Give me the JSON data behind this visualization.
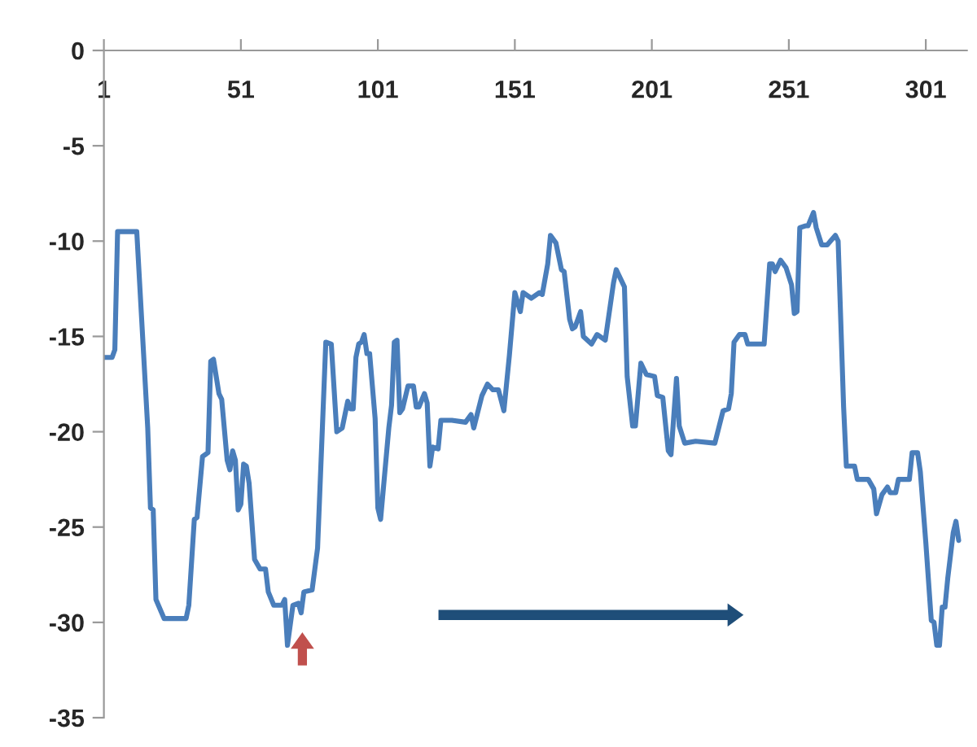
{
  "chart_data": {
    "type": "line",
    "xlim": [
      1,
      316
    ],
    "xticks": [
      1,
      51,
      101,
      151,
      201,
      251,
      301
    ],
    "ylim": [
      -35,
      0
    ],
    "yticks": [
      0,
      -5,
      -10,
      -15,
      -20,
      -25,
      -30,
      -35
    ],
    "grid": false,
    "legend": false,
    "marker": "none",
    "line_style": "solid",
    "series": [
      {
        "color": "#4a7ebb",
        "x": [
          1,
          4,
          5,
          6,
          10,
          13,
          17,
          18,
          19,
          20,
          23,
          27,
          31,
          32,
          34,
          35,
          37,
          39,
          40,
          41,
          43,
          44,
          46,
          47,
          48,
          49,
          50,
          51,
          52,
          53,
          54,
          56,
          58,
          60,
          61,
          63,
          66,
          67,
          68,
          70,
          72,
          73,
          74,
          77,
          79,
          82,
          84,
          86,
          88,
          90,
          91,
          92,
          93,
          94,
          95,
          96,
          97,
          98,
          100,
          101,
          102,
          105,
          106,
          107,
          108,
          109,
          110,
          112,
          114,
          115,
          116,
          118,
          119,
          120,
          121,
          123,
          124,
          128,
          133,
          135,
          136,
          139,
          141,
          143,
          145,
          147,
          149,
          151,
          153,
          154,
          157,
          160,
          161,
          163,
          164,
          166,
          168,
          169,
          171,
          172,
          173,
          175,
          176,
          179,
          181,
          184,
          187,
          188,
          191,
          192,
          194,
          195,
          197,
          199,
          202,
          203,
          205,
          207,
          208,
          210,
          211,
          213,
          217,
          224,
          227,
          229,
          230,
          231,
          233,
          235,
          236,
          242,
          244,
          245,
          246,
          248,
          250,
          252,
          253,
          254,
          255,
          257,
          258,
          260,
          261,
          263,
          265,
          268,
          269,
          271,
          272,
          275,
          276,
          280,
          282,
          283,
          285,
          287,
          288,
          290,
          291,
          295,
          296,
          298,
          299,
          301,
          303,
          304,
          305,
          306,
          307,
          308,
          309,
          310,
          311,
          312,
          313
        ],
        "values": [
          -16.1,
          -16.1,
          -15.7,
          -9.5,
          -9.5,
          -9.5,
          -19.8,
          -24,
          -24.1,
          -28.8,
          -29.8,
          -29.8,
          -29.8,
          -29.1,
          -24.6,
          -24.5,
          -21.3,
          -21.1,
          -16.3,
          -16.2,
          -18,
          -18.3,
          -21.5,
          -22,
          -21,
          -21.5,
          -24.1,
          -23.8,
          -21.7,
          -21.8,
          -22.7,
          -26.7,
          -27.2,
          -27.2,
          -28.4,
          -29.1,
          -29.1,
          -28.8,
          -31.2,
          -29.1,
          -29,
          -29.5,
          -28.4,
          -28.3,
          -26.1,
          -15.3,
          -15.4,
          -20,
          -19.8,
          -18.4,
          -18.8,
          -18.8,
          -16.1,
          -15.4,
          -15.3,
          -14.9,
          -15.9,
          -15.9,
          -19.3,
          -24,
          -24.6,
          -19.8,
          -18.6,
          -15.3,
          -15.2,
          -19,
          -18.8,
          -17.6,
          -17.6,
          -18.7,
          -18.7,
          -18,
          -18.5,
          -21.8,
          -20.8,
          -20.9,
          -19.4,
          -19.4,
          -19.5,
          -19.1,
          -19.8,
          -18.1,
          -17.5,
          -17.8,
          -17.8,
          -18.9,
          -16,
          -12.7,
          -13.7,
          -12.7,
          -13,
          -12.7,
          -12.8,
          -11.2,
          -9.7,
          -10.1,
          -11.5,
          -11.6,
          -14.1,
          -14.6,
          -14.5,
          -13.7,
          -15,
          -15.4,
          -14.9,
          -15.2,
          -12.2,
          -11.5,
          -12.4,
          -17.1,
          -19.7,
          -19.7,
          -16.4,
          -17,
          -17.1,
          -18.1,
          -18.2,
          -21,
          -21.2,
          -17.2,
          -19.7,
          -20.6,
          -20.5,
          -20.6,
          -18.9,
          -18.8,
          -18,
          -15.3,
          -14.9,
          -14.9,
          -15.4,
          -15.4,
          -11.2,
          -11.2,
          -11.6,
          -11,
          -11.4,
          -12.3,
          -13.8,
          -13.7,
          -9.3,
          -9.2,
          -9.2,
          -8.5,
          -9.3,
          -10.2,
          -10.2,
          -9.7,
          -10,
          -18.7,
          -21.8,
          -21.8,
          -22.5,
          -22.5,
          -23,
          -24.3,
          -23.3,
          -22.9,
          -23.2,
          -23.2,
          -22.5,
          -22.5,
          -21.1,
          -21.1,
          -22.1,
          -25.8,
          -29.9,
          -30,
          -31.2,
          -31.2,
          -29.2,
          -29.2,
          -27.7,
          -26.5,
          -25.3,
          -24.7,
          -25.7
        ]
      }
    ]
  }
}
